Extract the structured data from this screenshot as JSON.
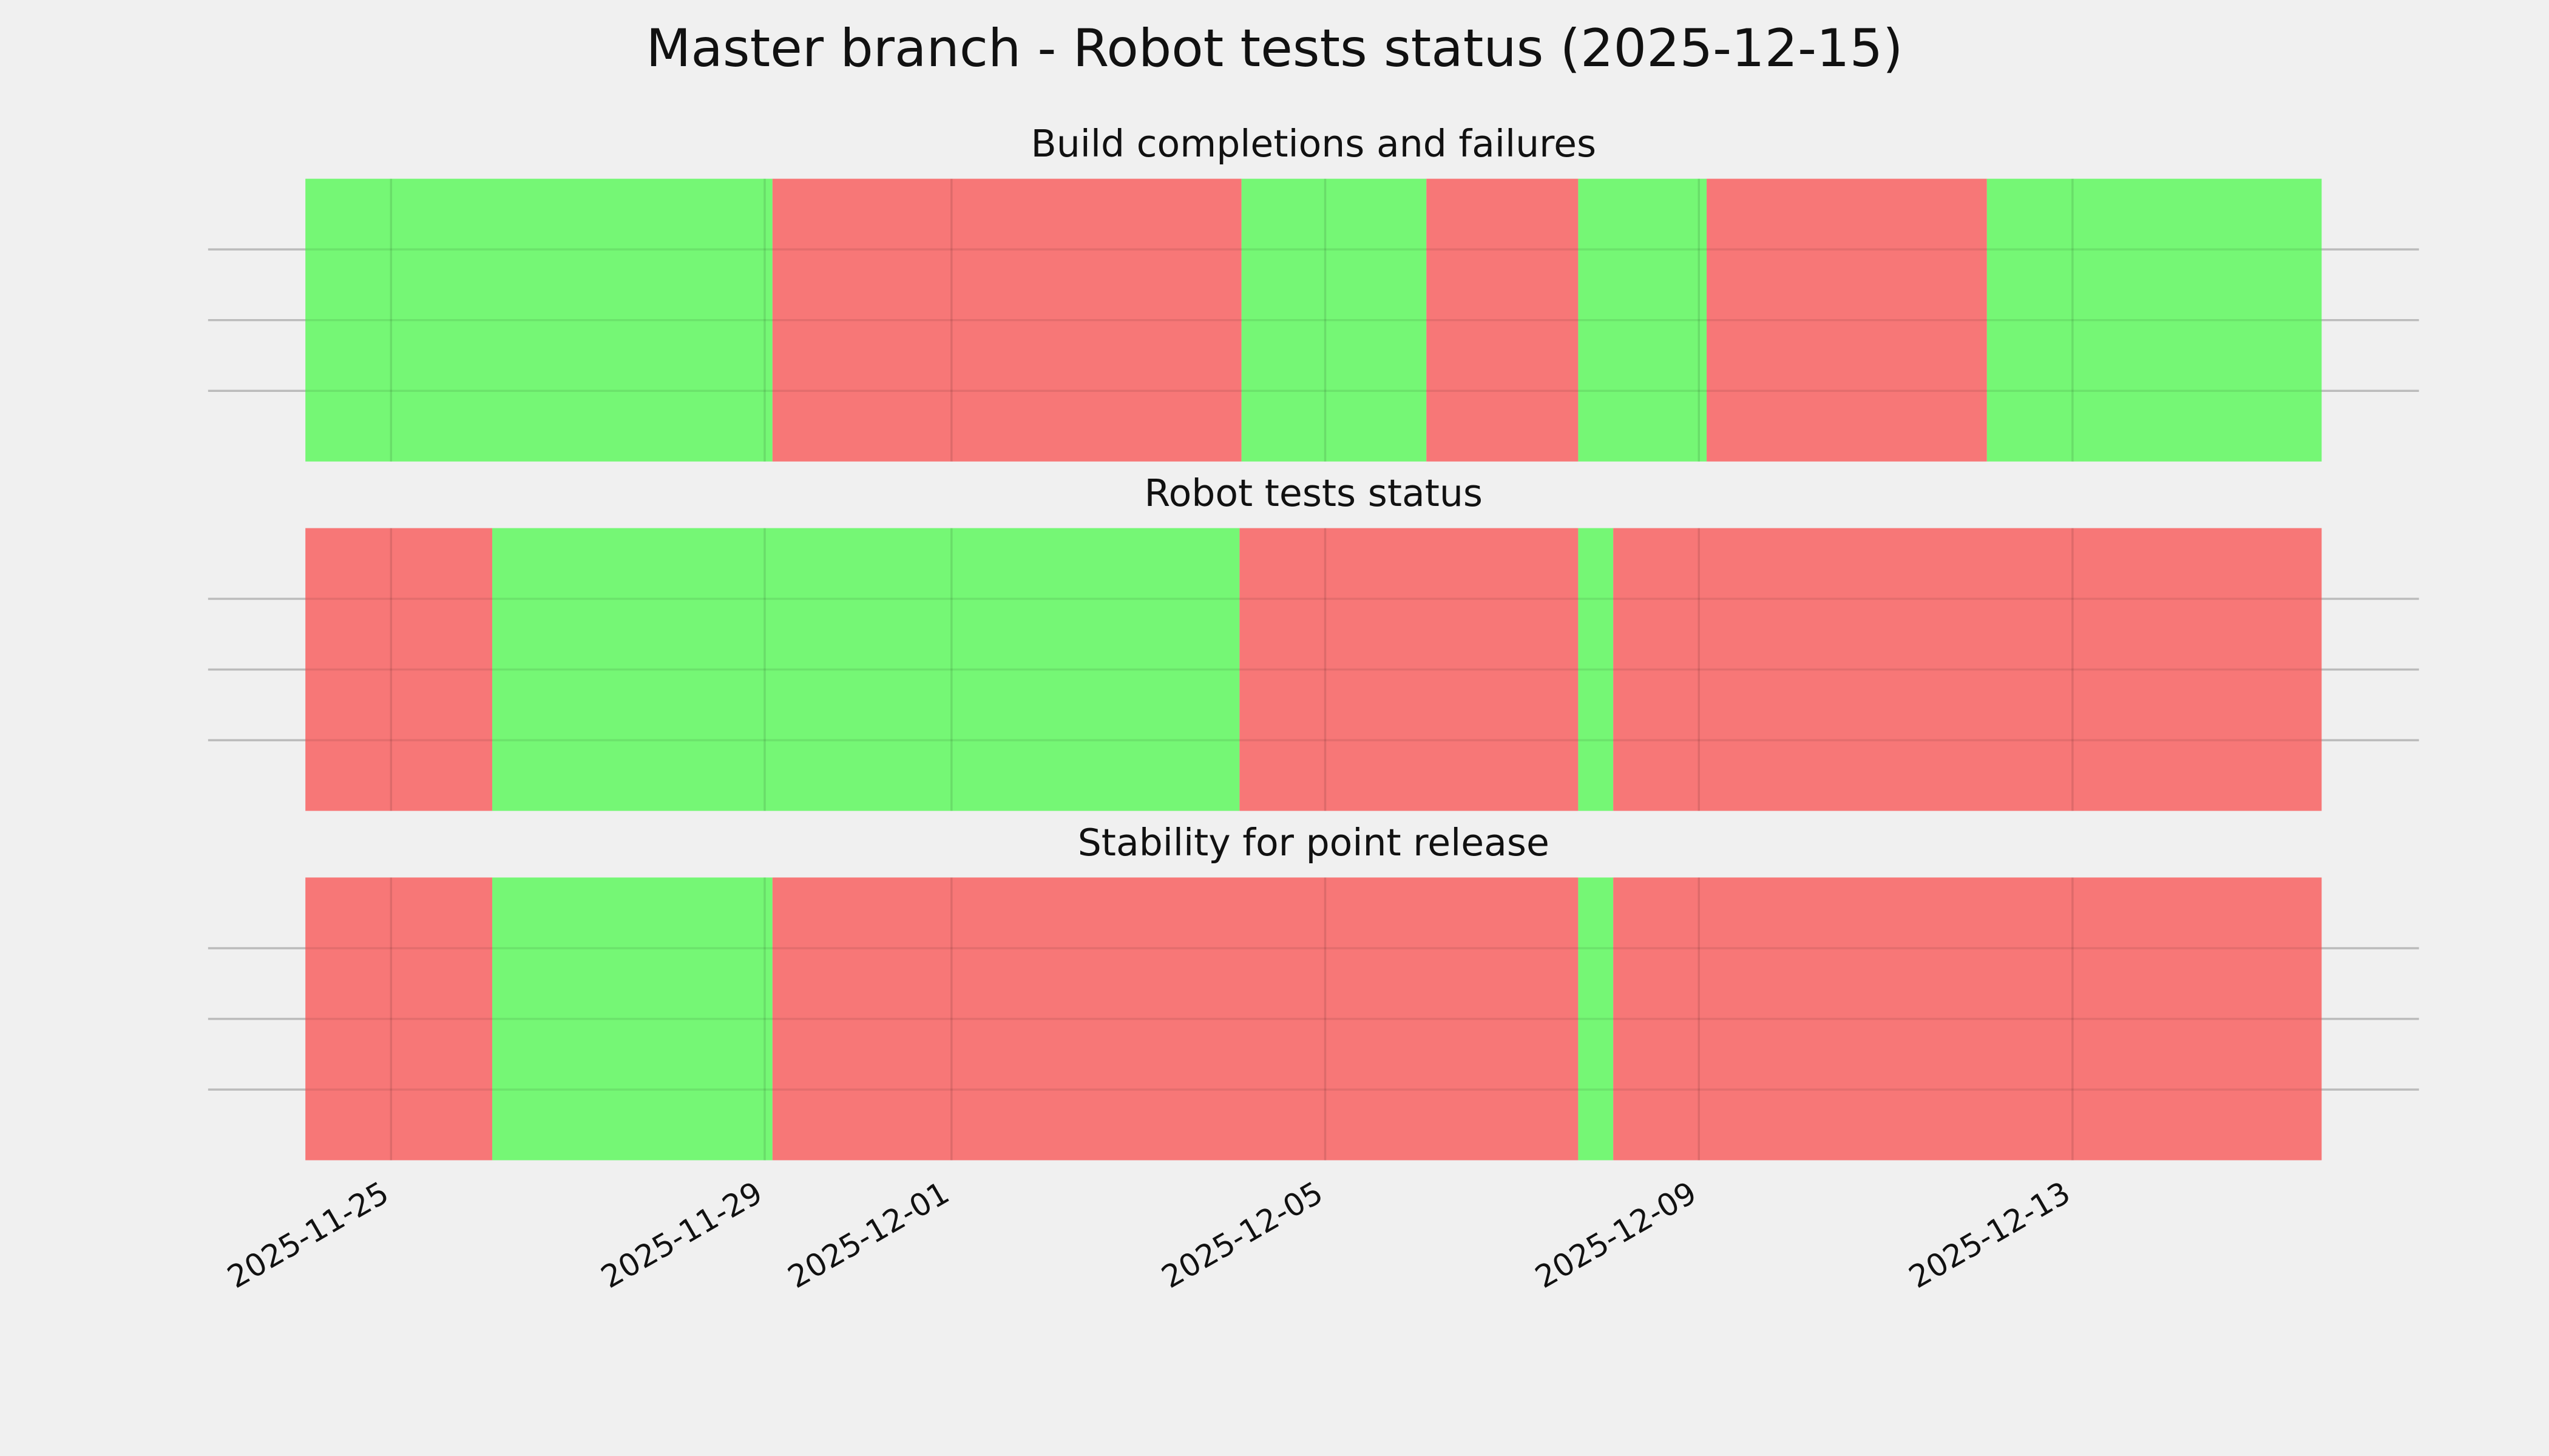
{
  "chart_data": {
    "type": "timeline",
    "title": "Master branch - Robot tests status (2025-12-15)",
    "xlim": [
      "2025-11-23T01:00",
      "2025-12-16T17:00"
    ],
    "xticks": [
      "2025-11-25",
      "2025-11-29",
      "2025-12-01",
      "2025-12-05",
      "2025-12-09",
      "2025-12-13"
    ],
    "grid": true,
    "panels": [
      {
        "title": "Build completions and failures",
        "ylim": [
          0,
          1
        ],
        "yticks": [
          0.25,
          0.5,
          0.75
        ],
        "spans": [
          {
            "start": "2025-11-24T02:00",
            "end": "2025-11-29T02:00",
            "color": "#75f775"
          },
          {
            "start": "2025-11-29T02:00",
            "end": "2025-12-04T02:30",
            "color": "#f77777"
          },
          {
            "start": "2025-12-04T02:30",
            "end": "2025-12-06T02:00",
            "color": "#75f775"
          },
          {
            "start": "2025-12-06T02:00",
            "end": "2025-12-07T17:00",
            "color": "#f77777"
          },
          {
            "start": "2025-12-07T17:00",
            "end": "2025-12-09T02:00",
            "color": "#75f775"
          },
          {
            "start": "2025-12-09T02:00",
            "end": "2025-12-12T02:00",
            "color": "#f77777"
          },
          {
            "start": "2025-12-12T02:00",
            "end": "2025-12-15T16:00",
            "color": "#75f775"
          }
        ]
      },
      {
        "title": "Robot tests status",
        "ylim": [
          0,
          1
        ],
        "yticks": [
          0.25,
          0.5,
          0.75
        ],
        "spans": [
          {
            "start": "2025-11-24T02:00",
            "end": "2025-11-26T02:00",
            "color": "#f77777"
          },
          {
            "start": "2025-11-26T02:00",
            "end": "2025-12-04T02:00",
            "color": "#75f775"
          },
          {
            "start": "2025-12-04T02:00",
            "end": "2025-12-07T17:00",
            "color": "#f77777"
          },
          {
            "start": "2025-12-07T17:00",
            "end": "2025-12-08T02:00",
            "color": "#75f775"
          },
          {
            "start": "2025-12-08T02:00",
            "end": "2025-12-15T16:00",
            "color": "#f77777"
          }
        ]
      },
      {
        "title": "Stability for point release",
        "ylim": [
          0,
          1
        ],
        "yticks": [
          0.25,
          0.5,
          0.75
        ],
        "spans": [
          {
            "start": "2025-11-24T02:00",
            "end": "2025-11-26T02:00",
            "color": "#f77777"
          },
          {
            "start": "2025-11-26T02:00",
            "end": "2025-11-29T02:00",
            "color": "#75f775"
          },
          {
            "start": "2025-11-29T02:00",
            "end": "2025-12-07T17:00",
            "color": "#f77777"
          },
          {
            "start": "2025-12-07T17:00",
            "end": "2025-12-08T02:00",
            "color": "#75f775"
          },
          {
            "start": "2025-12-08T02:00",
            "end": "2025-12-15T16:00",
            "color": "#f77777"
          }
        ]
      }
    ]
  }
}
